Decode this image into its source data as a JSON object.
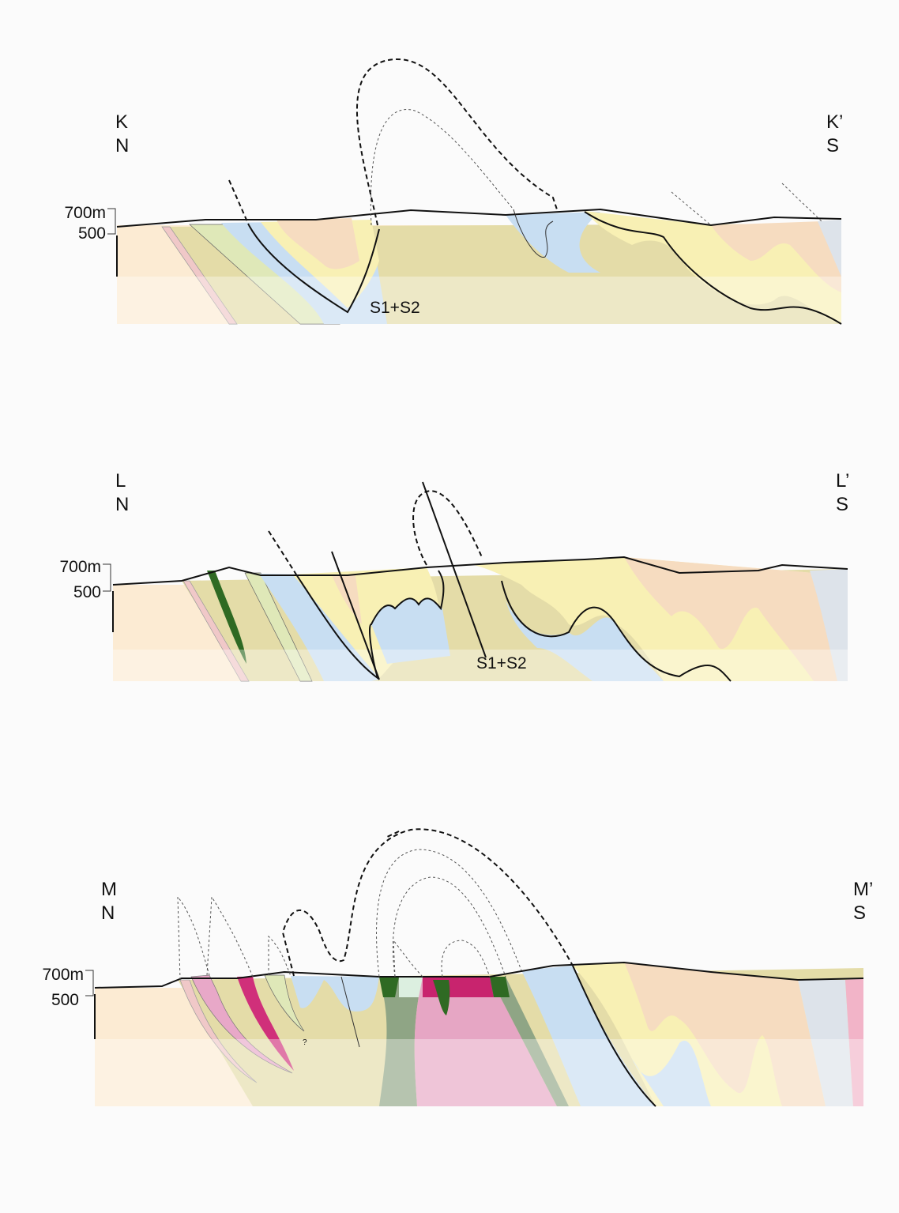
{
  "sections": [
    {
      "left_label": "K",
      "left_direction": "N",
      "right_label": "K’",
      "right_direction": "S",
      "scale_top": "700m",
      "scale_bottom": "500",
      "annotation": "S1+S2"
    },
    {
      "left_label": "L",
      "left_direction": "N",
      "right_label": "L’",
      "right_direction": "S",
      "scale_top": "700m",
      "scale_bottom": "500",
      "annotation": "S1+S2"
    },
    {
      "left_label": "M",
      "left_direction": "N",
      "right_label": "M’",
      "right_direction": "S",
      "scale_top": "700m",
      "scale_bottom": "500",
      "annotation": "?"
    }
  ]
}
